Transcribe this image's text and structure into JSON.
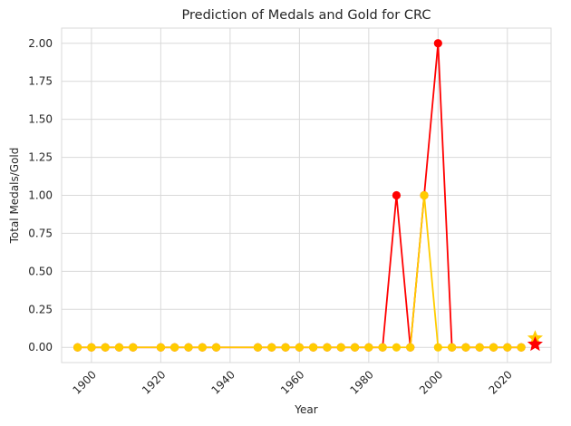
{
  "chart_data": {
    "type": "line",
    "title": "Prediction of Medals and Gold for CRC",
    "xlabel": "Year",
    "ylabel": "Total Medals/Gold",
    "xlim": [
      1891.4,
      2032.6
    ],
    "ylim": [
      -0.1,
      2.1
    ],
    "grid": true,
    "x_ticks": [
      1900,
      1920,
      1940,
      1960,
      1980,
      2000,
      2020
    ],
    "y_ticks": [
      0.0,
      0.25,
      0.5,
      0.75,
      1.0,
      1.25,
      1.5,
      1.75,
      2.0
    ],
    "x_tick_labels": [
      "1900",
      "1920",
      "1940",
      "1960",
      "1980",
      "2000",
      "2020"
    ],
    "y_tick_labels": [
      "0.00",
      "0.25",
      "0.50",
      "0.75",
      "1.00",
      "1.25",
      "1.50",
      "1.75",
      "2.00"
    ],
    "series": [
      {
        "color": "#ff0000",
        "marker": "circle",
        "x": [
          1896,
          1900,
          1904,
          1908,
          1912,
          1920,
          1924,
          1928,
          1932,
          1936,
          1948,
          1952,
          1956,
          1960,
          1964,
          1968,
          1972,
          1976,
          1980,
          1984,
          1988,
          1992,
          1996,
          2000,
          2004,
          2008,
          2012,
          2016,
          2020,
          2024
        ],
        "values": [
          0,
          0,
          0,
          0,
          0,
          0,
          0,
          0,
          0,
          0,
          0,
          0,
          0,
          0,
          0,
          0,
          0,
          0,
          0,
          0,
          1,
          0,
          1,
          2,
          0,
          0,
          0,
          0,
          0,
          0
        ]
      },
      {
        "color": "#ffcc00",
        "marker": "circle",
        "x": [
          1896,
          1900,
          1904,
          1908,
          1912,
          1920,
          1924,
          1928,
          1932,
          1936,
          1948,
          1952,
          1956,
          1960,
          1964,
          1968,
          1972,
          1976,
          1980,
          1984,
          1988,
          1992,
          1996,
          2000,
          2004,
          2008,
          2012,
          2016,
          2020,
          2024
        ],
        "values": [
          0,
          0,
          0,
          0,
          0,
          0,
          0,
          0,
          0,
          0,
          0,
          0,
          0,
          0,
          0,
          0,
          0,
          0,
          0,
          0,
          0,
          0,
          1,
          0,
          0,
          0,
          0,
          0,
          0,
          0
        ]
      }
    ],
    "predictions": [
      {
        "x": 2028,
        "value": 0.06,
        "color": "#ffcc00",
        "marker": "star"
      },
      {
        "x": 2028,
        "value": 0.02,
        "color": "#ff0000",
        "marker": "star"
      }
    ]
  }
}
